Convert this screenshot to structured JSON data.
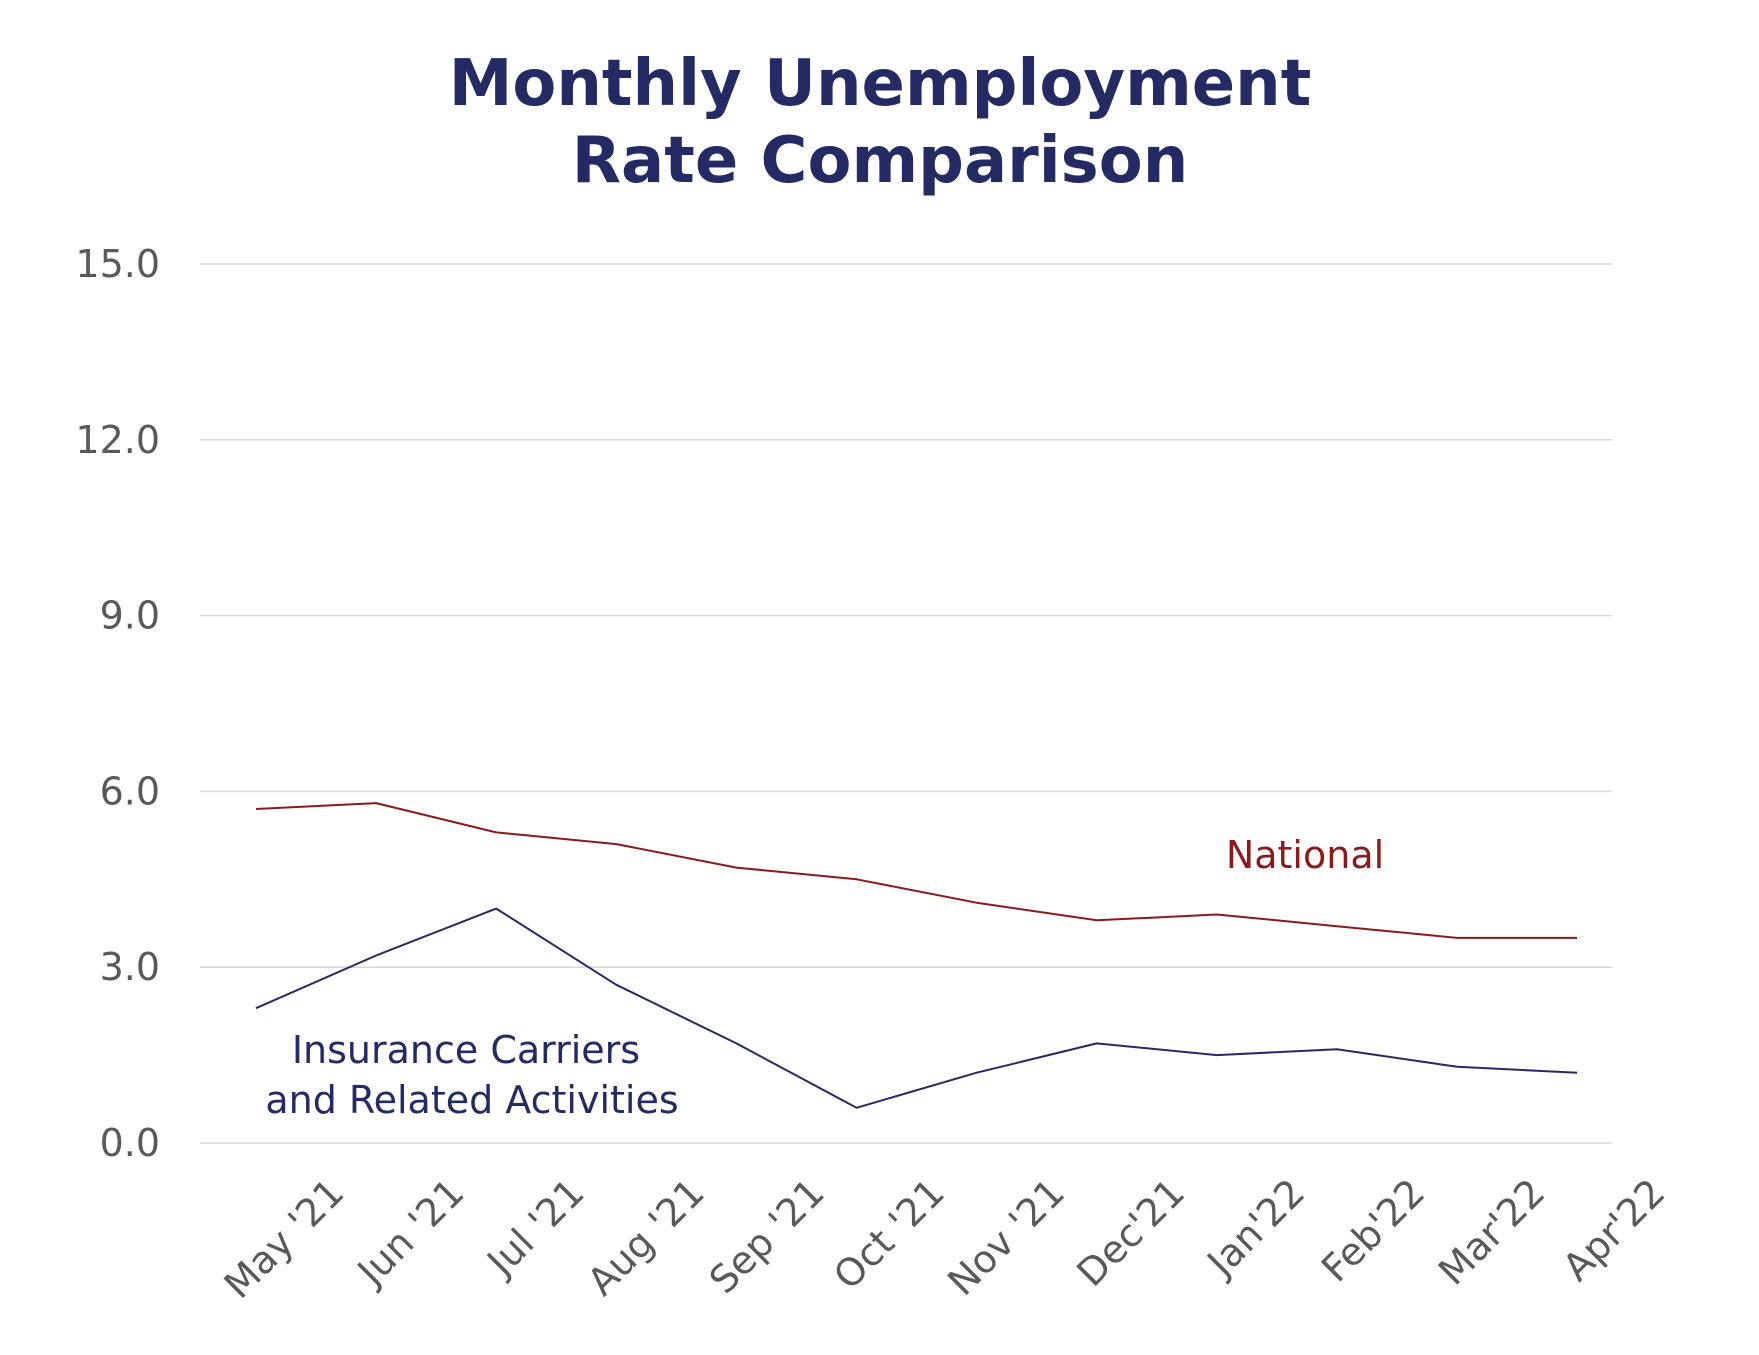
{
  "chart_data": {
    "type": "line",
    "title": [
      "Monthly Unemployment",
      "Rate Comparison"
    ],
    "xlabel": "",
    "ylabel": "",
    "categories": [
      "May '21",
      "Jun '21",
      "Jul '21",
      "Aug '21",
      "Sep '21",
      "Oct '21",
      "Nov '21",
      "Dec'21",
      "Jan'22",
      "Feb'22",
      "Mar'22",
      "Apr'22"
    ],
    "yticks": [
      "0.0",
      "3.0",
      "6.0",
      "9.0",
      "12.0",
      "15.0"
    ],
    "ylim": [
      0,
      15
    ],
    "grid": true,
    "series": [
      {
        "name": "National",
        "label_lines": [
          "National"
        ],
        "color": "#8b1a1a",
        "values": [
          5.7,
          5.8,
          5.3,
          5.1,
          4.7,
          4.5,
          4.1,
          3.8,
          3.9,
          3.7,
          3.5,
          3.5
        ]
      },
      {
        "name": "Insurance Carriers and Related Activities",
        "label_lines": [
          "Insurance Carriers",
          "and Related Activities"
        ],
        "color": "#232a64",
        "values": [
          2.3,
          3.2,
          4.0,
          2.7,
          1.7,
          0.6,
          1.2,
          1.7,
          1.5,
          1.6,
          1.3,
          1.2
        ]
      }
    ]
  }
}
